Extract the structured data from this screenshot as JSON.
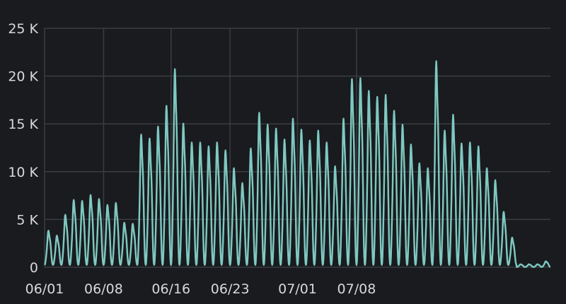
{
  "chart_data": {
    "type": "line",
    "title": "",
    "xlabel": "",
    "ylabel": "",
    "x_tick_labels": [
      "06/01",
      "06/08",
      "06/16",
      "06/23",
      "07/01",
      "07/08"
    ],
    "y_tick_labels": [
      "0",
      "5 K",
      "10 K",
      "15 K",
      "20 K",
      "25 K"
    ],
    "y_ticks": [
      0,
      5000,
      10000,
      15000,
      20000,
      25000
    ],
    "ylim": [
      0,
      25000
    ],
    "grid": true,
    "legend": "none",
    "series": [
      {
        "color": "#7ec8c2",
        "daily_peaks": [
          3700,
          3200,
          5300,
          6800,
          6700,
          7300,
          6900,
          6300,
          6500,
          4500,
          4400,
          13400,
          13000,
          14200,
          16300,
          20000,
          14500,
          12600,
          12600,
          12200,
          12600,
          11800,
          10000,
          8500,
          12000,
          15600,
          14400,
          14000,
          12900,
          15000,
          13900,
          12800,
          13800,
          12600,
          10200,
          15000,
          19000,
          19100,
          17800,
          17200,
          17400,
          15800,
          14400,
          12400,
          10500,
          10000,
          20800,
          13800,
          15400,
          12500,
          12600,
          12200,
          10000,
          8800,
          5600,
          3000,
          300,
          300,
          300,
          600
        ]
      }
    ]
  },
  "colors": {
    "background": "#191b1f",
    "grid": "#3a3c40",
    "series_line": "#7ec8c2",
    "series_line_secondary": "#8bb86a",
    "axis_text": "#d8d9da"
  }
}
